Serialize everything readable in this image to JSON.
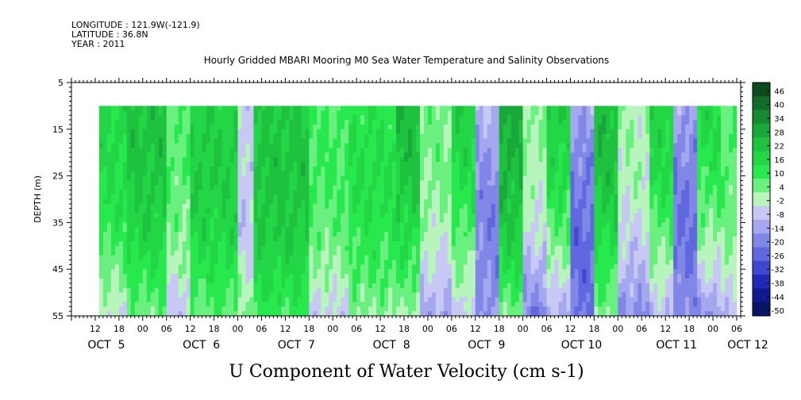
{
  "header": {
    "longitude": "LONGITUDE : 121.9W(-121.9)",
    "latitude": "LATITUDE : 36.8N",
    "year": "YEAR : 2011"
  },
  "chart_data": {
    "type": "heatmap",
    "title": "Hourly Gridded MBARI Mooring M0 Sea Water Temperature and Salinity Observations",
    "xlabel": "",
    "ylabel": "DEPTH (m)",
    "variable_label": "U Component of Water Velocity (cm s-1)",
    "y_reversed": true,
    "ylim": [
      5,
      55
    ],
    "y_ticks": [
      5,
      15,
      25,
      35,
      45,
      55
    ],
    "data_depth_range": [
      10,
      55
    ],
    "x_hours_range": [
      -18,
      151
    ],
    "data_hours_range": [
      -11,
      150
    ],
    "x_tick_labels": [
      "12",
      "18",
      "00",
      "06",
      "12",
      "18",
      "00",
      "06",
      "12",
      "18",
      "00",
      "06",
      "12",
      "18",
      "00",
      "06",
      "12",
      "18",
      "00",
      "06",
      "12",
      "18",
      "00",
      "06",
      "12",
      "18",
      "00",
      "06"
    ],
    "x_tick_hours": [
      -12,
      -6,
      0,
      6,
      12,
      18,
      24,
      30,
      36,
      42,
      48,
      54,
      60,
      66,
      72,
      78,
      84,
      90,
      96,
      102,
      108,
      114,
      120,
      126,
      132,
      138,
      144,
      150
    ],
    "date_labels": [
      {
        "label": "OCT  5",
        "hour": -12
      },
      {
        "label": "OCT  6",
        "hour": 12
      },
      {
        "label": "OCT  7",
        "hour": 36
      },
      {
        "label": "OCT  8",
        "hour": 60
      },
      {
        "label": "OCT  9",
        "hour": 84
      },
      {
        "label": "OCT 10",
        "hour": 108
      },
      {
        "label": "OCT 11",
        "hour": 132
      },
      {
        "label": "OCT 12",
        "hour": 150
      }
    ],
    "colorbar": {
      "levels": [
        46,
        40,
        34,
        28,
        22,
        16,
        10,
        4,
        -2,
        -8,
        -14,
        -20,
        -26,
        -32,
        -38,
        -44,
        -50
      ],
      "colors": [
        "#0d4a1d",
        "#136b29",
        "#178a31",
        "#1aa83a",
        "#1ec23f",
        "#22d645",
        "#27e84d",
        "#6af07e",
        "#b8f5bd",
        "#c8c8f4",
        "#a5a8ee",
        "#8187e6",
        "#5f68de",
        "#3f47cf",
        "#2128b8",
        "#101a8e",
        "#0a1464"
      ]
    },
    "u_velocity_bands": [
      {
        "hours": [
          -11,
          -4
        ],
        "near_surface": 18,
        "bottom": -2
      },
      {
        "hours": [
          -4,
          6
        ],
        "near_surface": 24,
        "bottom": 6
      },
      {
        "hours": [
          6,
          12
        ],
        "near_surface": 8,
        "bottom": -6
      },
      {
        "hours": [
          12,
          24
        ],
        "near_surface": 20,
        "bottom": 8
      },
      {
        "hours": [
          24,
          28
        ],
        "near_surface": -3,
        "bottom": 4
      },
      {
        "hours": [
          28,
          42
        ],
        "near_surface": 22,
        "bottom": 12
      },
      {
        "hours": [
          42,
          52
        ],
        "near_surface": 10,
        "bottom": -4
      },
      {
        "hours": [
          52,
          64
        ],
        "near_surface": 14,
        "bottom": 4
      },
      {
        "hours": [
          64,
          70
        ],
        "near_surface": 26,
        "bottom": 2
      },
      {
        "hours": [
          70,
          78
        ],
        "near_surface": 6,
        "bottom": -12
      },
      {
        "hours": [
          78,
          84
        ],
        "near_surface": 20,
        "bottom": -6
      },
      {
        "hours": [
          84,
          90
        ],
        "near_surface": -8,
        "bottom": -14
      },
      {
        "hours": [
          90,
          96
        ],
        "near_surface": 30,
        "bottom": 6
      },
      {
        "hours": [
          96,
          102
        ],
        "near_surface": 4,
        "bottom": -18
      },
      {
        "hours": [
          102,
          108
        ],
        "near_surface": 22,
        "bottom": -10
      },
      {
        "hours": [
          108,
          114
        ],
        "near_surface": -10,
        "bottom": -20
      },
      {
        "hours": [
          114,
          120
        ],
        "near_surface": 26,
        "bottom": 4
      },
      {
        "hours": [
          120,
          128
        ],
        "near_surface": 2,
        "bottom": -16
      },
      {
        "hours": [
          128,
          134
        ],
        "near_surface": 20,
        "bottom": -8
      },
      {
        "hours": [
          134,
          140
        ],
        "near_surface": -12,
        "bottom": -16
      },
      {
        "hours": [
          140,
          146
        ],
        "near_surface": 18,
        "bottom": -14
      },
      {
        "hours": [
          146,
          150
        ],
        "near_surface": 8,
        "bottom": -6
      }
    ]
  }
}
